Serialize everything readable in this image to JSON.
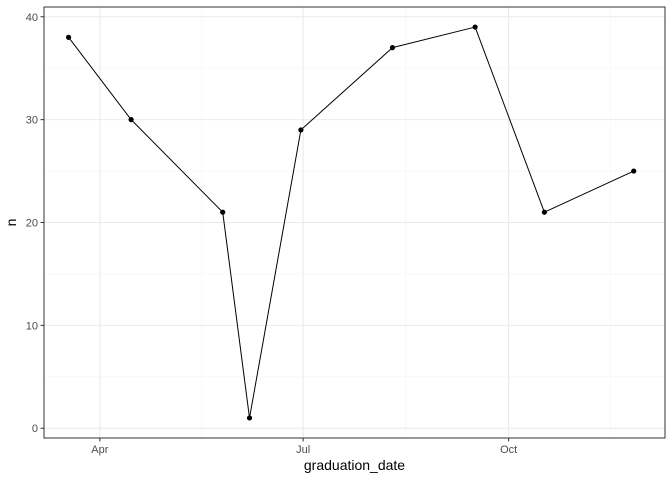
{
  "chart_data": {
    "type": "line",
    "title": "",
    "xlabel": "graduation_date",
    "ylabel": "n",
    "x_ticks": [
      {
        "date": "2023-04-01",
        "label": "Apr"
      },
      {
        "date": "2023-07-01",
        "label": "Jul"
      },
      {
        "date": "2023-10-01",
        "label": "Oct"
      }
    ],
    "y_ticks": [
      0,
      10,
      20,
      30,
      40
    ],
    "xlim": [
      "2023-03-07",
      "2023-12-10"
    ],
    "ylim": [
      -0.95,
      40.95
    ],
    "grid": true,
    "series": [
      {
        "x": [
          "2023-03-18",
          "2023-04-15",
          "2023-05-26",
          "2023-06-07",
          "2023-06-30",
          "2023-08-10",
          "2023-09-16",
          "2023-10-17",
          "2023-11-26"
        ],
        "y": [
          38,
          30,
          21,
          1,
          29,
          37,
          39,
          21,
          25
        ]
      }
    ],
    "colors": {
      "line": "#000000",
      "point": "#000000",
      "panel_border": "#333333",
      "grid_major": "#ebebeb",
      "grid_minor": "#f5f5f5",
      "tick_label": "#4d4d4d",
      "axis_title": "#000000"
    }
  }
}
